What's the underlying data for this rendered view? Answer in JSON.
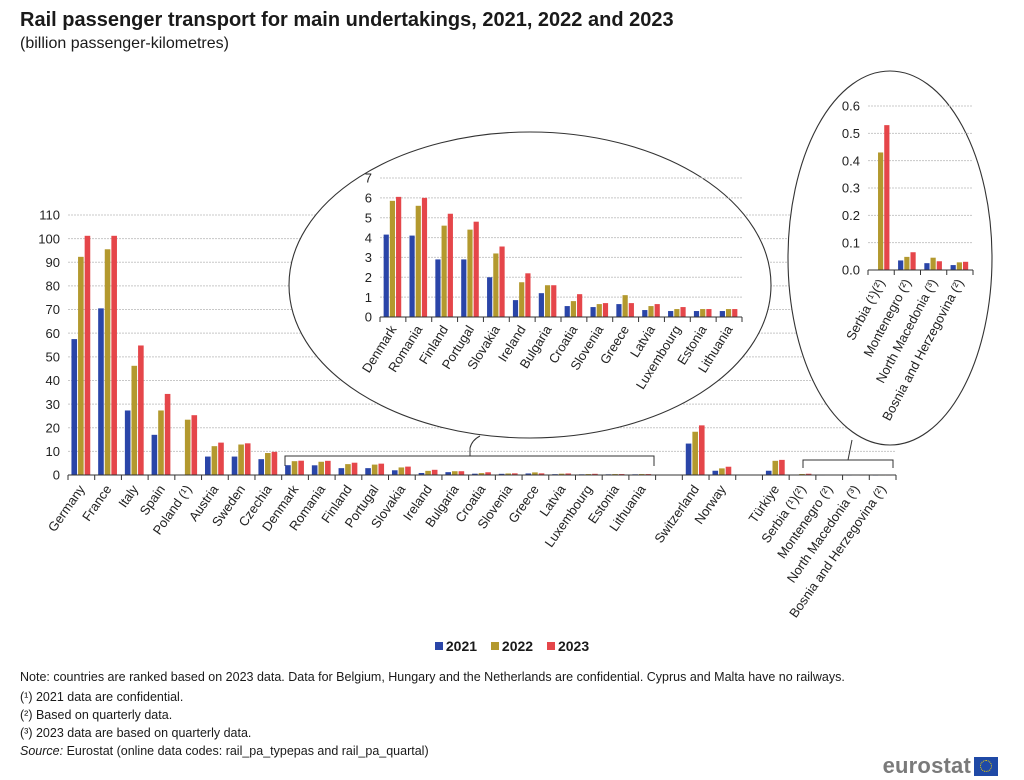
{
  "header": {
    "title": "Rail passenger transport for main undertakings, 2021, 2022 and 2023",
    "subtitle": "(billion passenger-kilometres)"
  },
  "colors": {
    "2021": "#2a45a8",
    "2022": "#b3992e",
    "2023": "#e5464a",
    "grid": "#c8c8c8",
    "axis": "#333333"
  },
  "legend": [
    {
      "label": "2021",
      "color": "#2a45a8"
    },
    {
      "label": "2022",
      "color": "#b3992e"
    },
    {
      "label": "2023",
      "color": "#e5464a"
    }
  ],
  "chart_data": [
    {
      "type": "bar",
      "name": "main",
      "title": "Rail passenger transport for main undertakings, 2021, 2022 and 2023",
      "ylabel": "billion passenger-kilometres",
      "ylim": [
        0,
        110
      ],
      "yticks": [
        0,
        10,
        20,
        30,
        40,
        50,
        60,
        70,
        80,
        90,
        100,
        110
      ],
      "grid": true,
      "legend_position": "bottom",
      "categories": [
        "Germany",
        "France",
        "Italy",
        "Spain",
        "Poland (¹)",
        "Austria",
        "Sweden",
        "Czechia",
        "Denmark",
        "Romania",
        "Finland",
        "Portugal",
        "Slovakia",
        "Ireland",
        "Bulgaria",
        "Croatia",
        "Slovenia",
        "Greece",
        "Latvia",
        "Luxembourg",
        "Estonia",
        "Lithuania",
        "",
        "Switzerland",
        "Norway",
        "",
        "Türkiye",
        "Serbia (¹)(²)",
        "Montenegro (²)",
        "North Macedonia (³)",
        "Bosnia and Herzegovina (²)"
      ],
      "series": [
        {
          "name": "2021",
          "values": [
            57.5,
            70.5,
            27.3,
            17.0,
            null,
            7.8,
            7.8,
            6.7,
            4.15,
            4.1,
            2.9,
            2.9,
            2.0,
            0.85,
            1.2,
            0.55,
            0.5,
            0.65,
            0.35,
            0.3,
            0.3,
            0.3,
            null,
            13.3,
            1.8,
            null,
            1.8,
            null,
            0.035,
            0.025,
            0.018
          ]
        },
        {
          "name": "2022",
          "values": [
            92.3,
            95.5,
            46.2,
            27.3,
            23.4,
            12.2,
            12.9,
            9.3,
            5.85,
            5.6,
            4.6,
            4.4,
            3.2,
            1.75,
            1.6,
            0.8,
            0.65,
            1.1,
            0.55,
            0.4,
            0.4,
            0.4,
            null,
            18.3,
            2.8,
            null,
            6.0,
            0.43,
            0.048,
            0.045,
            0.028
          ]
        },
        {
          "name": "2023",
          "values": [
            101.2,
            101.2,
            54.8,
            34.3,
            25.3,
            13.7,
            13.4,
            9.8,
            6.05,
            6.0,
            5.2,
            4.8,
            3.55,
            2.2,
            1.6,
            1.15,
            0.7,
            0.7,
            0.65,
            0.5,
            0.4,
            0.4,
            null,
            21.0,
            3.5,
            null,
            6.4,
            0.53,
            0.065,
            0.032,
            0.03
          ]
        }
      ]
    },
    {
      "type": "bar",
      "name": "inset-medium",
      "ylim": [
        0,
        7
      ],
      "yticks": [
        0,
        1,
        2,
        3,
        4,
        5,
        6,
        7
      ],
      "grid": true,
      "categories": [
        "Denmark",
        "Romania",
        "Finland",
        "Portugal",
        "Slovakia",
        "Ireland",
        "Bulgaria",
        "Croatia",
        "Slovenia",
        "Greece",
        "Latvia",
        "Luxembourg",
        "Estonia",
        "Lithuania"
      ],
      "series": [
        {
          "name": "2021",
          "values": [
            4.15,
            4.1,
            2.9,
            2.9,
            2.0,
            0.85,
            1.2,
            0.55,
            0.5,
            0.65,
            0.35,
            0.3,
            0.3,
            0.3
          ]
        },
        {
          "name": "2022",
          "values": [
            5.85,
            5.6,
            4.6,
            4.4,
            3.2,
            1.75,
            1.6,
            0.8,
            0.65,
            1.1,
            0.55,
            0.4,
            0.4,
            0.4
          ]
        },
        {
          "name": "2023",
          "values": [
            6.05,
            6.0,
            5.2,
            4.8,
            3.55,
            2.2,
            1.6,
            1.15,
            0.7,
            0.7,
            0.65,
            0.5,
            0.4,
            0.4
          ]
        }
      ]
    },
    {
      "type": "bar",
      "name": "inset-small",
      "ylim": [
        0,
        0.6
      ],
      "yticks": [
        "0.0",
        "0.1",
        "0.2",
        "0.3",
        "0.4",
        "0.5",
        "0.6"
      ],
      "grid": true,
      "categories": [
        "Serbia (¹)(²)",
        "Montenegro (²)",
        "North Macedonia (³)",
        "Bosnia and Herzegovina (²)"
      ],
      "series": [
        {
          "name": "2021",
          "values": [
            null,
            0.035,
            0.025,
            0.018
          ]
        },
        {
          "name": "2022",
          "values": [
            0.43,
            0.048,
            0.045,
            0.028
          ]
        },
        {
          "name": "2023",
          "values": [
            0.53,
            0.065,
            0.032,
            0.03
          ]
        }
      ]
    }
  ],
  "notes": {
    "main": "Note: countries are ranked based on 2023 data. Data for Belgium, Hungary and the Netherlands are confidential. Cyprus and Malta have no railways.",
    "footnote1": "(¹) 2021 data are confidential.",
    "footnote2": "(²) Based on quarterly data.",
    "footnote3": "(³) 2023 data are based on quarterly data.",
    "source_label": "Source:",
    "source_text": " Eurostat (online data codes: rail_pa_typepas and rail_pa_quartal)"
  },
  "logo": {
    "text": "eurostat",
    "icon": "eu-flag-icon"
  }
}
